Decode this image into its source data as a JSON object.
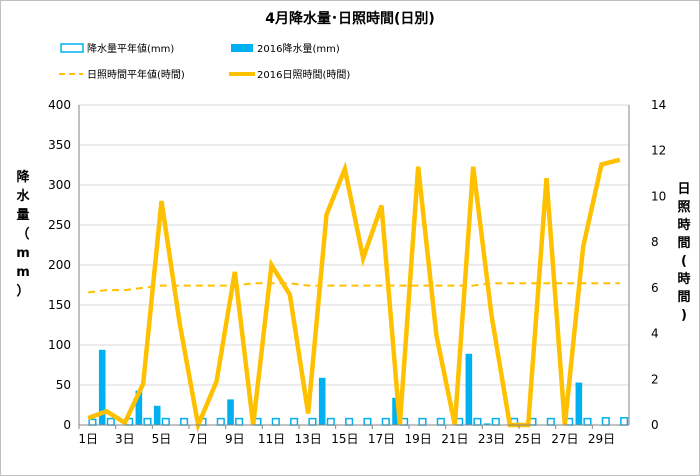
{
  "chart_data": {
    "type": "bar+line",
    "title": "4月降水量･日照時間(日別)",
    "left_axis_label": "降水量（mm）",
    "right_axis_label": "日照時間(時間)",
    "left_ylim": [
      0,
      400
    ],
    "left_ticks": [
      "0",
      "50",
      "100",
      "150",
      "200",
      "250",
      "300",
      "350",
      "400"
    ],
    "right_ylim": [
      0,
      14
    ],
    "right_ticks": [
      "0",
      "2",
      "4",
      "6",
      "8",
      "10",
      "12",
      "14"
    ],
    "x_ticks": [
      "1日",
      "3日",
      "5日",
      "7日",
      "9日",
      "11日",
      "13日",
      "15日",
      "17日",
      "19日",
      "21日",
      "23日",
      "25日",
      "27日",
      "29日"
    ],
    "days": [
      1,
      2,
      3,
      4,
      5,
      6,
      7,
      8,
      9,
      10,
      11,
      12,
      13,
      14,
      15,
      16,
      17,
      18,
      19,
      20,
      21,
      22,
      23,
      24,
      25,
      26,
      27,
      28,
      29,
      30
    ],
    "grid": "horizontal",
    "series": [
      {
        "name": "降水量平年値(mm)",
        "axis": "left",
        "kind": "bar-outline",
        "color": "#00b0f0",
        "values": [
          7,
          8,
          8,
          8,
          8,
          8,
          8,
          8,
          8,
          8,
          8,
          8,
          8,
          8,
          8,
          8,
          8,
          8,
          8,
          8,
          8,
          8,
          8,
          8,
          8,
          8,
          8,
          8,
          9,
          9
        ]
      },
      {
        "name": "2016降水量(mm)",
        "axis": "left",
        "kind": "bar",
        "color": "#00b0f0",
        "values": [
          0,
          94,
          0,
          43,
          24,
          0,
          0,
          0,
          32,
          0,
          0,
          0,
          0,
          59,
          0,
          0,
          0,
          34,
          0,
          0,
          0,
          89,
          2,
          0,
          0,
          0,
          0,
          53,
          0,
          0
        ]
      },
      {
        "name": "日照時間平年値(時間)",
        "axis": "right",
        "kind": "dashed-line",
        "color": "#ffc000",
        "values": [
          5.8,
          5.9,
          5.9,
          6.0,
          6.1,
          6.1,
          6.1,
          6.1,
          6.1,
          6.2,
          6.2,
          6.2,
          6.1,
          6.1,
          6.1,
          6.1,
          6.1,
          6.1,
          6.1,
          6.1,
          6.1,
          6.1,
          6.2,
          6.2,
          6.2,
          6.2,
          6.2,
          6.2,
          6.2,
          6.2
        ]
      },
      {
        "name": "2016日照時間(時間)",
        "axis": "right",
        "kind": "line",
        "color": "#ffc000",
        "values": [
          0.3,
          0.6,
          0.1,
          1.8,
          9.8,
          4.4,
          0.0,
          1.9,
          6.7,
          0.0,
          7.0,
          5.7,
          0.5,
          9.2,
          11.2,
          7.3,
          9.6,
          0.0,
          11.3,
          3.9,
          0.0,
          11.3,
          4.8,
          0.0,
          0.0,
          10.8,
          0.0,
          7.8,
          11.4,
          11.6
        ]
      }
    ]
  }
}
